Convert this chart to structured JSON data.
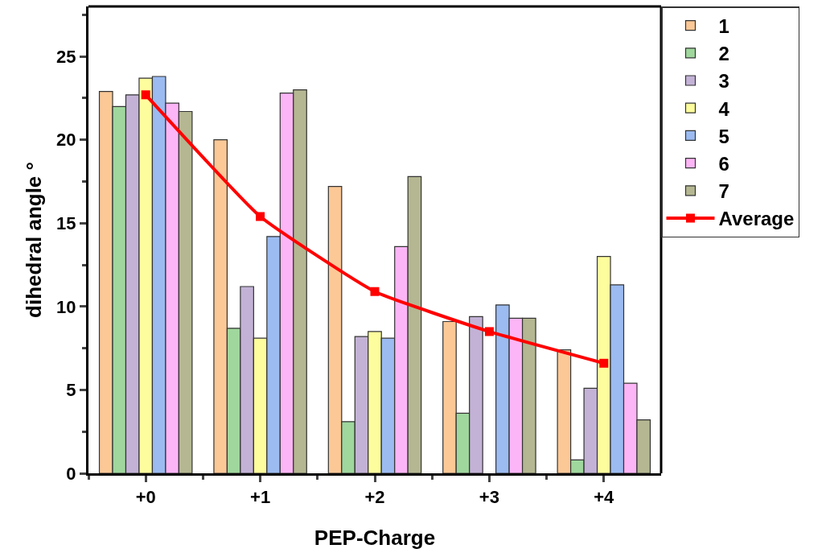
{
  "chart_data": {
    "type": "bar",
    "xlabel": "PEP-Charge",
    "ylabel": "dihedral angle °",
    "categories": [
      "+0",
      "+1",
      "+2",
      "+3",
      "+4"
    ],
    "series": [
      {
        "name": "1",
        "color": "#fbc896",
        "values": [
          22.9,
          20.0,
          17.2,
          9.1,
          7.4
        ]
      },
      {
        "name": "2",
        "color": "#9fd79d",
        "values": [
          22.0,
          8.7,
          3.1,
          3.6,
          0.8
        ]
      },
      {
        "name": "3",
        "color": "#c3b2d6",
        "values": [
          22.7,
          11.2,
          8.2,
          9.4,
          5.1
        ]
      },
      {
        "name": "4",
        "color": "#fefd9d",
        "values": [
          23.7,
          8.1,
          8.5,
          null,
          13.0
        ]
      },
      {
        "name": "5",
        "color": "#9bbbf1",
        "values": [
          23.8,
          14.2,
          8.1,
          10.1,
          11.3
        ]
      },
      {
        "name": "6",
        "color": "#fcb5f6",
        "values": [
          22.2,
          22.8,
          13.6,
          9.3,
          5.4
        ]
      },
      {
        "name": "7",
        "color": "#b4b791",
        "values": [
          21.7,
          23.0,
          17.8,
          9.3,
          3.2
        ]
      },
      {
        "name": "Average",
        "type": "line",
        "color": "#ff0000",
        "marker": "square",
        "line_style": "solid",
        "values": [
          22.7,
          15.4,
          10.9,
          8.5,
          6.6
        ]
      }
    ],
    "ylim": [
      0,
      28
    ],
    "yticks": [
      0,
      5,
      10,
      15,
      20,
      25
    ],
    "grid": false,
    "legend": "top right"
  }
}
